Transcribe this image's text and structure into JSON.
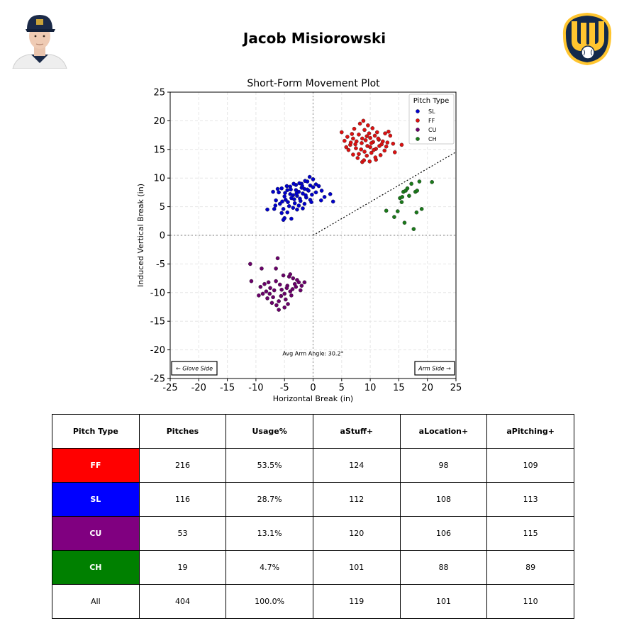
{
  "header": {
    "title": "Jacob Misiorowski"
  },
  "colors": {
    "FF": "#ff0000",
    "SL": "#0000ff",
    "CU": "#800080",
    "CH": "#008000"
  },
  "chart_data": {
    "type": "scatter",
    "title": "Short-Form Movement Plot",
    "xlabel": "Horizontal Break (in)",
    "ylabel": "Induced Vertical Break (in)",
    "xlim": [
      -25,
      25
    ],
    "ylim": [
      -25,
      25
    ],
    "ticks": [
      "-25",
      "-20",
      "-15",
      "-10",
      "-5",
      "0",
      "5",
      "10",
      "15",
      "20",
      "25"
    ],
    "grid": true,
    "legend": {
      "title": "Pitch Type",
      "placement": "top-right"
    },
    "annotation": "Avg Arm Angle: 30.2°",
    "glove_side_label": "← Glove Side",
    "arm_side_label": "Arm Side →",
    "arm_angle_deg": 30.2,
    "series": [
      {
        "name": "SL",
        "color": "#0000cc",
        "points": [
          [
            -6.0,
            7.5
          ],
          [
            -5.5,
            8.2
          ],
          [
            -5.0,
            6.8
          ],
          [
            -4.5,
            7.9
          ],
          [
            -4.0,
            8.5
          ],
          [
            -3.5,
            7.0
          ],
          [
            -3.0,
            8.8
          ],
          [
            -2.5,
            7.6
          ],
          [
            -2.0,
            9.0
          ],
          [
            -1.5,
            8.1
          ],
          [
            -1.0,
            9.4
          ],
          [
            -0.5,
            8.7
          ],
          [
            0.0,
            9.8
          ],
          [
            0.5,
            8.9
          ],
          [
            -5.8,
            5.5
          ],
          [
            -5.2,
            4.6
          ],
          [
            -4.8,
            6.2
          ],
          [
            -4.2,
            5.1
          ],
          [
            -3.8,
            6.5
          ],
          [
            -3.2,
            5.6
          ],
          [
            -2.8,
            6.9
          ],
          [
            -2.2,
            6.0
          ],
          [
            -1.8,
            7.3
          ],
          [
            -1.2,
            6.6
          ],
          [
            -0.8,
            7.8
          ],
          [
            -0.2,
            7.1
          ],
          [
            -6.5,
            6.1
          ],
          [
            -7.0,
            7.6
          ],
          [
            -5.5,
            3.9
          ],
          [
            -5.0,
            3.0
          ],
          [
            -4.5,
            4.0
          ],
          [
            -3.5,
            4.8
          ],
          [
            -2.5,
            5.2
          ],
          [
            -1.5,
            5.5
          ],
          [
            -0.5,
            6.2
          ],
          [
            0.5,
            7.5
          ],
          [
            1.0,
            8.6
          ],
          [
            1.5,
            7.8
          ],
          [
            2.0,
            6.7
          ],
          [
            3.0,
            7.2
          ],
          [
            3.5,
            5.9
          ],
          [
            -8.0,
            4.5
          ],
          [
            -6.8,
            4.6
          ],
          [
            -6.2,
            8.1
          ],
          [
            -4.0,
            7.2
          ],
          [
            -3.0,
            7.9
          ],
          [
            -2.0,
            8.3
          ],
          [
            -1.0,
            8.0
          ],
          [
            0.0,
            8.4
          ],
          [
            -0.6,
            10.2
          ],
          [
            -3.8,
            2.9
          ],
          [
            -5.2,
            2.7
          ],
          [
            -2.8,
            4.5
          ],
          [
            -1.8,
            4.7
          ],
          [
            -4.6,
            8.6
          ],
          [
            -1.4,
            9.5
          ],
          [
            -2.4,
            9.1
          ],
          [
            -3.4,
            9.0
          ],
          [
            -4.4,
            5.8
          ],
          [
            -5.4,
            5.9
          ],
          [
            -3.3,
            6.3
          ],
          [
            -2.3,
            6.4
          ],
          [
            -1.3,
            7.0
          ],
          [
            -6.6,
            5.2
          ],
          [
            1.4,
            6.1
          ],
          [
            -0.3,
            5.8
          ],
          [
            -4.9,
            7.4
          ],
          [
            -3.9,
            8.0
          ],
          [
            -2.9,
            7.3
          ],
          [
            -1.9,
            8.6
          ]
        ]
      },
      {
        "name": "FF",
        "color": "#dd1111",
        "points": [
          [
            5.0,
            18.0
          ],
          [
            5.5,
            16.5
          ],
          [
            6.0,
            17.2
          ],
          [
            6.5,
            15.8
          ],
          [
            7.0,
            16.9
          ],
          [
            7.5,
            15.2
          ],
          [
            8.0,
            17.6
          ],
          [
            8.5,
            16.1
          ],
          [
            9.0,
            18.4
          ],
          [
            9.5,
            15.6
          ],
          [
            10.0,
            17.0
          ],
          [
            10.5,
            16.3
          ],
          [
            11.0,
            15.1
          ],
          [
            11.5,
            16.7
          ],
          [
            12.0,
            15.9
          ],
          [
            12.5,
            14.8
          ],
          [
            13.0,
            16.2
          ],
          [
            13.5,
            17.4
          ],
          [
            8.2,
            19.5
          ],
          [
            8.8,
            20.0
          ],
          [
            9.6,
            19.2
          ],
          [
            10.4,
            18.7
          ],
          [
            11.2,
            18.0
          ],
          [
            7.2,
            18.6
          ],
          [
            6.2,
            14.9
          ],
          [
            7.0,
            14.1
          ],
          [
            7.8,
            13.5
          ],
          [
            8.6,
            12.8
          ],
          [
            9.4,
            13.9
          ],
          [
            10.2,
            14.4
          ],
          [
            11.0,
            13.2
          ],
          [
            11.8,
            14.0
          ],
          [
            12.6,
            17.8
          ],
          [
            14.0,
            16.0
          ],
          [
            15.5,
            15.8
          ],
          [
            14.3,
            14.5
          ],
          [
            6.8,
            17.7
          ],
          [
            7.6,
            16.4
          ],
          [
            8.4,
            15.0
          ],
          [
            9.2,
            16.6
          ],
          [
            10.0,
            15.4
          ],
          [
            10.8,
            17.4
          ],
          [
            11.6,
            15.6
          ],
          [
            9.0,
            14.6
          ],
          [
            8.0,
            14.2
          ],
          [
            9.8,
            17.8
          ],
          [
            10.6,
            14.9
          ],
          [
            7.4,
            15.9
          ],
          [
            8.6,
            16.9
          ],
          [
            9.4,
            17.3
          ],
          [
            10.2,
            16.1
          ],
          [
            11.4,
            16.9
          ],
          [
            12.2,
            16.4
          ],
          [
            6.6,
            16.2
          ],
          [
            5.8,
            15.4
          ],
          [
            12.8,
            15.5
          ],
          [
            13.2,
            18.1
          ],
          [
            8.9,
            13.1
          ],
          [
            10.9,
            13.6
          ],
          [
            9.9,
            12.9
          ]
        ]
      },
      {
        "name": "CU",
        "color": "#6a006a",
        "points": [
          [
            -11.0,
            -5.0
          ],
          [
            -10.8,
            -8.0
          ],
          [
            -9.5,
            -10.5
          ],
          [
            -9.0,
            -5.8
          ],
          [
            -8.5,
            -8.5
          ],
          [
            -8.0,
            -11.0
          ],
          [
            -7.5,
            -9.2
          ],
          [
            -7.0,
            -10.8
          ],
          [
            -6.5,
            -8.0
          ],
          [
            -6.0,
            -11.5
          ],
          [
            -5.5,
            -9.5
          ],
          [
            -5.0,
            -10.2
          ],
          [
            -4.5,
            -8.8
          ],
          [
            -4.0,
            -9.8
          ],
          [
            -3.5,
            -7.5
          ],
          [
            -3.0,
            -9.0
          ],
          [
            -2.5,
            -8.2
          ],
          [
            -2.0,
            -8.8
          ],
          [
            -1.5,
            -8.2
          ],
          [
            -6.2,
            -4.0
          ],
          [
            -6.0,
            -13.0
          ],
          [
            -5.0,
            -12.6
          ],
          [
            -6.5,
            -5.8
          ],
          [
            -7.8,
            -8.2
          ],
          [
            -8.2,
            -9.8
          ],
          [
            -7.2,
            -11.8
          ],
          [
            -4.8,
            -11.2
          ],
          [
            -4.2,
            -7.2
          ],
          [
            -3.8,
            -10.5
          ],
          [
            -3.2,
            -8.5
          ],
          [
            -5.2,
            -7.0
          ],
          [
            -5.8,
            -8.6
          ],
          [
            -6.8,
            -9.6
          ],
          [
            -7.6,
            -10.2
          ],
          [
            -4.6,
            -9.2
          ],
          [
            -5.6,
            -10.6
          ],
          [
            -3.6,
            -9.4
          ],
          [
            -2.8,
            -7.8
          ],
          [
            -8.8,
            -10.2
          ],
          [
            -9.2,
            -9.0
          ],
          [
            -4.4,
            -12.0
          ],
          [
            -6.4,
            -12.2
          ],
          [
            -2.2,
            -9.6
          ],
          [
            -4.0,
            -6.8
          ]
        ]
      },
      {
        "name": "CH",
        "color": "#1a7a1a",
        "points": [
          [
            12.8,
            4.3
          ],
          [
            14.2,
            3.2
          ],
          [
            14.8,
            4.2
          ],
          [
            15.2,
            6.5
          ],
          [
            15.5,
            5.8
          ],
          [
            15.8,
            7.6
          ],
          [
            16.0,
            2.2
          ],
          [
            16.2,
            7.8
          ],
          [
            16.5,
            8.2
          ],
          [
            16.8,
            6.9
          ],
          [
            17.2,
            9.0
          ],
          [
            17.6,
            1.1
          ],
          [
            17.9,
            7.6
          ],
          [
            18.1,
            4.0
          ],
          [
            18.2,
            7.8
          ],
          [
            18.6,
            9.4
          ],
          [
            19.0,
            4.6
          ],
          [
            20.8,
            9.3
          ],
          [
            15.6,
            6.7
          ]
        ]
      }
    ]
  },
  "table": {
    "headers": [
      "Pitch Type",
      "Pitches",
      "Usage%",
      "aStuff+",
      "aLocation+",
      "aPitching+"
    ],
    "rows": [
      [
        "FF",
        "216",
        "53.5%",
        "124",
        "98",
        "109"
      ],
      [
        "SL",
        "116",
        "28.7%",
        "112",
        "108",
        "113"
      ],
      [
        "CU",
        "53",
        "13.1%",
        "120",
        "106",
        "115"
      ],
      [
        "CH",
        "19",
        "4.7%",
        "101",
        "88",
        "89"
      ],
      [
        "All",
        "404",
        "100.0%",
        "119",
        "101",
        "110"
      ]
    ]
  }
}
